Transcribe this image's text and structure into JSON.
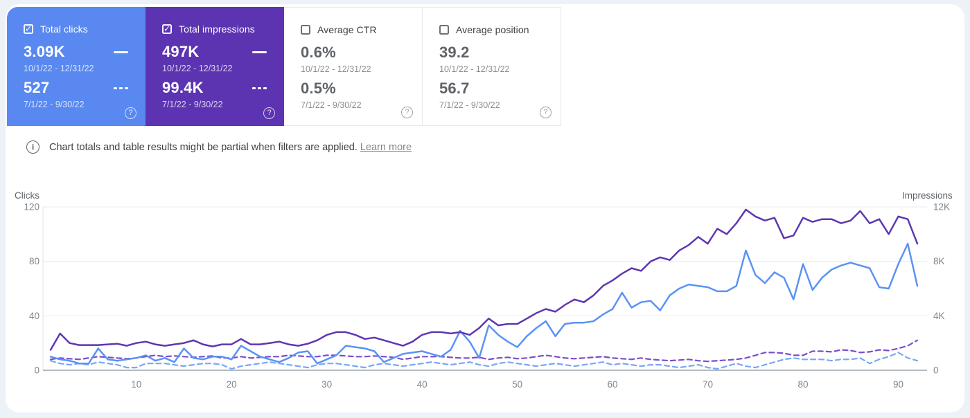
{
  "glyphs": {
    "check": "✓",
    "help": "?",
    "info": "i"
  },
  "cards": [
    {
      "label": "Total clicks",
      "checked": true,
      "selected": true,
      "bg": "#5888f0",
      "value_current": "3.09K",
      "range_current": "10/1/22 - 12/31/22",
      "value_previous": "527",
      "range_previous": "7/1/22 - 9/30/22"
    },
    {
      "label": "Total impressions",
      "checked": true,
      "selected": true,
      "bg": "#5c34b1",
      "value_current": "497K",
      "range_current": "10/1/22 - 12/31/22",
      "value_previous": "99.4K",
      "range_previous": "7/1/22 - 9/30/22"
    },
    {
      "label": "Average CTR",
      "checked": false,
      "selected": false,
      "bg": "",
      "value_current": "0.6%",
      "range_current": "10/1/22 - 12/31/22",
      "value_previous": "0.5%",
      "range_previous": "7/1/22 - 9/30/22"
    },
    {
      "label": "Average position",
      "checked": false,
      "selected": false,
      "bg": "",
      "value_current": "39.2",
      "range_current": "10/1/22 - 12/31/22",
      "value_previous": "56.7",
      "range_previous": "7/1/22 - 9/30/22"
    }
  ],
  "notice": {
    "text": "Chart totals and table results might be partial when filters are applied.",
    "link": "Learn more"
  },
  "chart_data": {
    "type": "line",
    "x_label_ticks": [
      10,
      20,
      30,
      40,
      50,
      60,
      70,
      80,
      90
    ],
    "x_count": 92,
    "axes": {
      "left": {
        "label": "Clicks",
        "ticks": [
          0,
          40,
          80,
          120
        ],
        "tick_labels": [
          "0",
          "40",
          "80",
          "120"
        ],
        "max": 120
      },
      "right": {
        "label": "Impressions",
        "ticks": [
          0,
          4000,
          8000,
          12000
        ],
        "tick_labels": [
          "0",
          "4K",
          "8K",
          "12K"
        ],
        "max": 12000
      }
    },
    "grid": true,
    "series": [
      {
        "name": "Clicks 10/1/22 - 12/31/22",
        "axis": "left",
        "style": "solid",
        "color": "#5b92f5",
        "values": [
          10,
          8,
          7,
          5,
          5,
          16,
          8,
          7,
          8,
          9,
          11,
          7,
          9,
          6,
          16,
          9,
          8,
          10,
          10,
          8,
          18,
          14,
          10,
          8,
          6,
          9,
          13,
          14,
          5,
          8,
          11,
          18,
          17,
          16,
          14,
          6,
          9,
          12,
          13,
          14,
          12,
          10,
          15,
          29,
          21,
          9,
          33,
          26,
          21,
          17,
          25,
          31,
          36,
          25,
          34,
          35,
          35,
          36,
          41,
          45,
          57,
          46,
          50,
          51,
          44,
          55,
          60,
          63,
          62,
          61,
          58,
          58,
          62,
          88,
          70,
          64,
          72,
          68,
          52,
          78,
          59,
          68,
          74,
          77,
          79,
          77,
          75,
          61,
          60,
          78,
          93,
          62
        ]
      },
      {
        "name": "Clicks 7/1/22 - 9/30/22",
        "axis": "left",
        "style": "dashed",
        "color": "#79a6f7",
        "values": [
          7,
          5,
          4,
          5,
          4,
          6,
          5,
          4,
          2,
          2,
          5,
          5,
          5,
          4,
          3,
          4,
          5,
          5,
          4,
          1,
          3,
          4,
          5,
          6,
          5,
          4,
          3,
          2,
          4,
          5,
          5,
          4,
          3,
          2,
          4,
          5,
          4,
          3,
          4,
          5,
          6,
          5,
          4,
          5,
          6,
          4,
          3,
          5,
          6,
          5,
          4,
          3,
          4,
          5,
          4,
          3,
          4,
          5,
          6,
          4,
          5,
          4,
          3,
          4,
          4,
          3,
          2,
          3,
          4,
          2,
          1,
          3,
          5,
          3,
          2,
          4,
          6,
          8,
          9,
          8,
          8,
          8,
          7,
          8,
          8,
          9,
          5,
          8,
          10,
          13,
          9,
          7
        ]
      },
      {
        "name": "Impressions 10/1/22 - 12/31/22",
        "axis": "right",
        "style": "solid",
        "color": "#5f36b1",
        "values": [
          1500,
          2700,
          2000,
          1850,
          1850,
          1850,
          1900,
          1950,
          1800,
          2000,
          2100,
          1900,
          1800,
          1900,
          2000,
          2200,
          1900,
          1750,
          1900,
          1900,
          2300,
          1900,
          1900,
          2000,
          2100,
          1900,
          1800,
          1950,
          2200,
          2600,
          2800,
          2800,
          2600,
          2300,
          2400,
          2200,
          2000,
          1800,
          2100,
          2600,
          2800,
          2800,
          2700,
          2800,
          2600,
          3100,
          3800,
          3300,
          3400,
          3400,
          3800,
          4200,
          4500,
          4300,
          4800,
          5200,
          5000,
          5500,
          6200,
          6600,
          7100,
          7500,
          7300,
          8000,
          8300,
          8100,
          8800,
          9200,
          9800,
          9300,
          10400,
          10000,
          10800,
          11800,
          11300,
          11000,
          11200,
          9700,
          9900,
          11200,
          10900,
          11100,
          11100,
          10800,
          11000,
          11700,
          10800,
          11100,
          10000,
          11300,
          11100,
          9300
        ]
      },
      {
        "name": "Impressions 7/1/22 - 9/30/22",
        "axis": "right",
        "style": "dashed",
        "color": "#7a4ecb",
        "values": [
          800,
          900,
          850,
          800,
          900,
          1000,
          950,
          900,
          850,
          900,
          1000,
          1100,
          1000,
          1050,
          1000,
          950,
          1000,
          1050,
          900,
          900,
          1000,
          900,
          950,
          1000,
          1000,
          1100,
          1050,
          1000,
          1000,
          1100,
          1100,
          1050,
          1000,
          1000,
          1050,
          1000,
          950,
          800,
          900,
          1000,
          1000,
          1000,
          950,
          900,
          900,
          950,
          800,
          900,
          950,
          850,
          900,
          1000,
          1100,
          1000,
          900,
          850,
          900,
          950,
          1000,
          900,
          850,
          800,
          900,
          800,
          750,
          700,
          750,
          800,
          700,
          650,
          700,
          750,
          800,
          900,
          1100,
          1300,
          1300,
          1250,
          1100,
          1100,
          1400,
          1400,
          1350,
          1500,
          1450,
          1300,
          1350,
          1500,
          1450,
          1600,
          1800,
          2200
        ]
      }
    ]
  }
}
